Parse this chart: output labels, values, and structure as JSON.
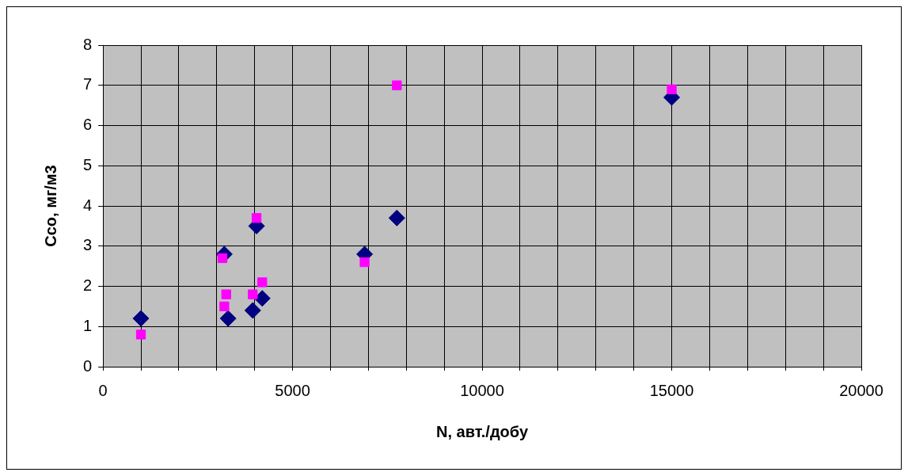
{
  "chart_data": {
    "type": "scatter",
    "xlabel": "N, авт./добу",
    "ylabel": "Cco, мг/м3",
    "xlim": [
      0,
      20000
    ],
    "xticks": [
      0,
      {
        "value": 1000,
        "label": null
      },
      {
        "value": 2000,
        "label": null
      },
      {
        "value": 3000,
        "label": null
      },
      {
        "value": 4000,
        "label": null
      },
      5000,
      {
        "value": 6000,
        "label": null
      },
      {
        "value": 7000,
        "label": null
      },
      {
        "value": 8000,
        "label": null
      },
      {
        "value": 9000,
        "label": null
      },
      10000,
      {
        "value": 11000,
        "label": null
      },
      {
        "value": 12000,
        "label": null
      },
      {
        "value": 13000,
        "label": null
      },
      {
        "value": 14000,
        "label": null
      },
      15000,
      {
        "value": 16000,
        "label": null
      },
      {
        "value": 17000,
        "label": null
      },
      {
        "value": 18000,
        "label": null
      },
      {
        "value": 19000,
        "label": null
      },
      20000
    ],
    "ylim": [
      0,
      8
    ],
    "yticks": [
      0,
      1,
      2,
      3,
      4,
      5,
      6,
      7,
      8
    ],
    "grid": true,
    "legend": false,
    "series": [
      {
        "color": "#000080",
        "marker": "diamond",
        "x": [
          1000,
          3200,
          3300,
          3950,
          4200,
          4050,
          6900,
          7750,
          15000
        ],
        "values": [
          1.2,
          2.8,
          1.2,
          1.4,
          1.7,
          3.5,
          2.8,
          3.7,
          6.7
        ]
      },
      {
        "color": "#ff00ff",
        "marker": "square",
        "x": [
          1000,
          3150,
          3250,
          3200,
          3950,
          4200,
          4050,
          6900,
          7750,
          15000
        ],
        "values": [
          0.8,
          2.7,
          1.8,
          1.5,
          1.8,
          2.1,
          3.7,
          2.6,
          7.0,
          6.9
        ]
      }
    ]
  }
}
